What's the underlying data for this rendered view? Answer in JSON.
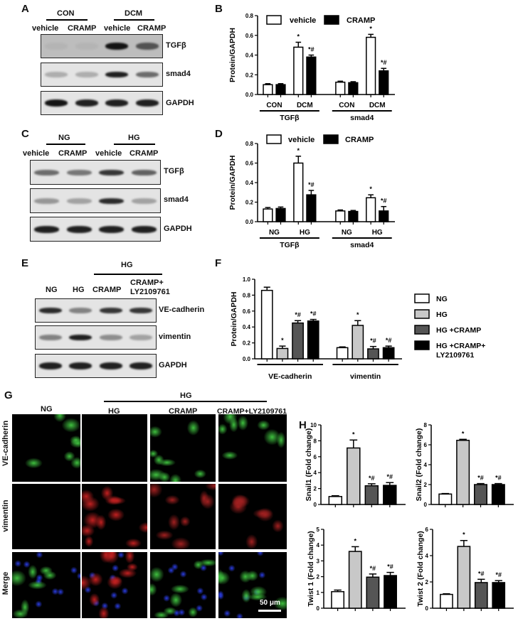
{
  "panels": {
    "A": "A",
    "B": "B",
    "C": "C",
    "D": "D",
    "E": "E",
    "F": "F",
    "G": "G",
    "H": "H"
  },
  "blotA": {
    "groups": [
      "CON",
      "DCM"
    ],
    "lanes": [
      "vehicle",
      "CRAMP",
      "vehicle",
      "CRAMP"
    ],
    "rows": [
      "TGFβ",
      "smad4",
      "GAPDH"
    ]
  },
  "blotC": {
    "groups": [
      "NG",
      "HG"
    ],
    "lanes": [
      "vehicle",
      "CRAMP",
      "vehicle",
      "CRAMP"
    ],
    "rows": [
      "TGFβ",
      "smad4",
      "GAPDH"
    ]
  },
  "blotE": {
    "group": "HG",
    "lanes": [
      "NG",
      "HG",
      "CRAMP",
      "CRAMP+",
      "LY2109761"
    ],
    "rows": [
      "VE-cadherin",
      "vimentin",
      "GAPDH"
    ]
  },
  "imagesG": {
    "group": "HG",
    "columns": [
      "NG",
      "HG",
      "CRAMP",
      "CRAMP+LY2109761"
    ],
    "rows": [
      "VE-cadherin",
      "vimentin",
      "Merge"
    ],
    "scale_bar": "50 μm"
  },
  "chart_data": [
    {
      "id": "B",
      "type": "bar",
      "ylabel": "Protein/GAPDH",
      "ylim": [
        0,
        0.8
      ],
      "yticks": [
        "0.0",
        "0.2",
        "0.4",
        "0.6",
        "0.8"
      ],
      "categories": [
        "CON",
        "DCM",
        "CON",
        "DCM"
      ],
      "groups": [
        "TGFβ",
        "smad4"
      ],
      "legend_placement": "top",
      "series": [
        {
          "name": "vehicle",
          "color": "#ffffff",
          "values": [
            0.1,
            0.48,
            0.125,
            0.58
          ],
          "errors": [
            0.01,
            0.05,
            0.01,
            0.03
          ],
          "sig": [
            "",
            "*",
            "",
            "*"
          ]
        },
        {
          "name": "CRAMP",
          "color": "#000000",
          "values": [
            0.1,
            0.38,
            0.12,
            0.24
          ],
          "errors": [
            0.01,
            0.02,
            0.01,
            0.025
          ],
          "sig": [
            "",
            "*#",
            "",
            "*#"
          ]
        }
      ]
    },
    {
      "id": "D",
      "type": "bar",
      "ylabel": "Protein/GAPDH",
      "ylim": [
        0,
        0.8
      ],
      "yticks": [
        "0.0",
        "0.2",
        "0.4",
        "0.6",
        "0.8"
      ],
      "categories": [
        "NG",
        "HG",
        "NG",
        "HG"
      ],
      "groups": [
        "TGFβ",
        "smad4"
      ],
      "legend_placement": "top",
      "series": [
        {
          "name": "vehicle",
          "color": "#ffffff",
          "values": [
            0.13,
            0.6,
            0.11,
            0.245
          ],
          "errors": [
            0.015,
            0.07,
            0.01,
            0.03
          ],
          "sig": [
            "",
            "*",
            "",
            "*"
          ]
        },
        {
          "name": "CRAMP",
          "color": "#000000",
          "values": [
            0.135,
            0.275,
            0.105,
            0.11
          ],
          "errors": [
            0.015,
            0.045,
            0.01,
            0.045
          ],
          "sig": [
            "",
            "*#",
            "",
            "*#"
          ]
        }
      ]
    },
    {
      "id": "F",
      "type": "bar",
      "ylabel": "Protein/GAPDH",
      "ylim": [
        0,
        1.0
      ],
      "yticks": [
        "0.0",
        "0.2",
        "0.4",
        "0.6",
        "0.8",
        "1.0"
      ],
      "categories": [
        "",
        ""
      ],
      "groups": [
        "VE-cadherin",
        "vimentin"
      ],
      "legend_placement": "right",
      "series": [
        {
          "name": "NG",
          "color": "#ffffff",
          "values": [
            0.86,
            0.14
          ],
          "errors": [
            0.04,
            0.01
          ],
          "sig": [
            "",
            ""
          ]
        },
        {
          "name": "HG",
          "color": "#c8c8c8",
          "values": [
            0.13,
            0.42
          ],
          "errors": [
            0.03,
            0.06
          ],
          "sig": [
            "*",
            "*"
          ]
        },
        {
          "name": "HG +CRAMP",
          "color": "#555555",
          "values": [
            0.45,
            0.125
          ],
          "errors": [
            0.03,
            0.03
          ],
          "sig": [
            "*#",
            "*#"
          ]
        },
        {
          "name": "HG +CRAMP+ LY2109761",
          "color": "#000000",
          "values": [
            0.475,
            0.14
          ],
          "errors": [
            0.02,
            0.02
          ],
          "sig": [
            "*#",
            "*#"
          ]
        }
      ]
    },
    {
      "id": "H1",
      "type": "bar",
      "ylabel": "Snail1 (Fold change)",
      "ylim": [
        0,
        10
      ],
      "yticks": [
        "0",
        "2",
        "4",
        "6",
        "8",
        "10"
      ],
      "categories": [
        ""
      ],
      "groups": [],
      "series": [
        {
          "color": "#ffffff",
          "values": [
            1.0
          ],
          "errors": [
            0.1
          ],
          "sig": [
            ""
          ]
        },
        {
          "color": "#c8c8c8",
          "values": [
            7.1
          ],
          "errors": [
            1.0
          ],
          "sig": [
            "*"
          ]
        },
        {
          "color": "#555555",
          "values": [
            2.35
          ],
          "errors": [
            0.25
          ],
          "sig": [
            "*#"
          ]
        },
        {
          "color": "#000000",
          "values": [
            2.4
          ],
          "errors": [
            0.35
          ],
          "sig": [
            "*#"
          ]
        }
      ]
    },
    {
      "id": "H2",
      "type": "bar",
      "ylabel": "Snail2 (Fold change)",
      "ylim": [
        0,
        8
      ],
      "yticks": [
        "0",
        "2",
        "4",
        "6",
        "8"
      ],
      "categories": [
        ""
      ],
      "groups": [],
      "series": [
        {
          "color": "#ffffff",
          "values": [
            1.05
          ],
          "errors": [
            0.05
          ],
          "sig": [
            ""
          ]
        },
        {
          "color": "#c8c8c8",
          "values": [
            6.45
          ],
          "errors": [
            0.1
          ],
          "sig": [
            "*"
          ]
        },
        {
          "color": "#555555",
          "values": [
            2.0
          ],
          "errors": [
            0.1
          ],
          "sig": [
            "*#"
          ]
        },
        {
          "color": "#000000",
          "values": [
            2.0
          ],
          "errors": [
            0.1
          ],
          "sig": [
            "*#"
          ]
        }
      ]
    },
    {
      "id": "H3",
      "type": "bar",
      "ylabel": "Twist 1 (Fold change)",
      "ylim": [
        0,
        5
      ],
      "yticks": [
        "0",
        "1",
        "2",
        "3",
        "4",
        "5"
      ],
      "categories": [
        ""
      ],
      "groups": [],
      "series": [
        {
          "color": "#ffffff",
          "values": [
            1.05
          ],
          "errors": [
            0.1
          ],
          "sig": [
            ""
          ]
        },
        {
          "color": "#c8c8c8",
          "values": [
            3.6
          ],
          "errors": [
            0.3
          ],
          "sig": [
            "*"
          ]
        },
        {
          "color": "#555555",
          "values": [
            1.97
          ],
          "errors": [
            0.2
          ],
          "sig": [
            "*#"
          ]
        },
        {
          "color": "#000000",
          "values": [
            2.07
          ],
          "errors": [
            0.2
          ],
          "sig": [
            "*#"
          ]
        }
      ]
    },
    {
      "id": "H4",
      "type": "bar",
      "ylabel": "Twist 2 (Fold change)",
      "ylim": [
        0,
        6
      ],
      "yticks": [
        "0",
        "2",
        "4",
        "6"
      ],
      "categories": [
        ""
      ],
      "groups": [],
      "series": [
        {
          "color": "#ffffff",
          "values": [
            1.05
          ],
          "errors": [
            0.05
          ],
          "sig": [
            ""
          ]
        },
        {
          "color": "#c8c8c8",
          "values": [
            4.7
          ],
          "errors": [
            0.45
          ],
          "sig": [
            "*"
          ]
        },
        {
          "color": "#555555",
          "values": [
            1.95
          ],
          "errors": [
            0.25
          ],
          "sig": [
            "*#"
          ]
        },
        {
          "color": "#000000",
          "values": [
            1.95
          ],
          "errors": [
            0.15
          ],
          "sig": [
            "*#"
          ]
        }
      ]
    }
  ]
}
